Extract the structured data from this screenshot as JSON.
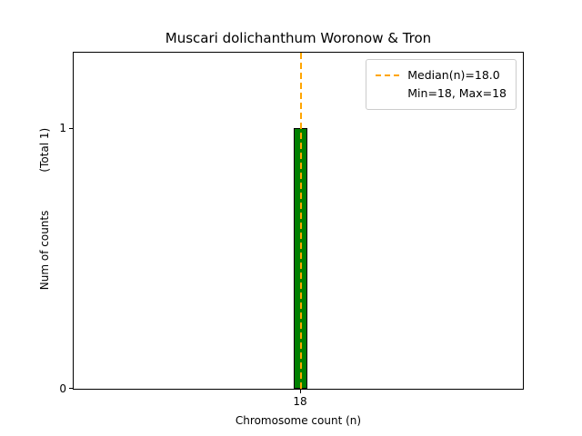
{
  "title": "Muscari dolichanthum Woronow & Tron",
  "chart_data": {
    "type": "bar",
    "title": "Muscari dolichanthum Woronow & Tron",
    "categories": [
      "18"
    ],
    "values": [
      1
    ],
    "xlabel": "Chromosome count (n)",
    "ylabel": "Num of counts",
    "ylabel_annotation": "(Total 1)",
    "ylim": [
      0,
      1.29
    ],
    "yticks": [
      "0",
      "1"
    ],
    "xticks": [
      "18"
    ],
    "median": 18.0,
    "min": 18,
    "max": 18,
    "grid": false,
    "bar_color": "#008000",
    "bar_edge_color": "#000000",
    "median_line_color": "#FFA500",
    "legend": {
      "position": "upper right",
      "entries": [
        {
          "label": "Median(n)=18.0",
          "marker": "dashed-line"
        },
        {
          "label": "Min=18, Max=18",
          "marker": "none"
        }
      ]
    }
  }
}
